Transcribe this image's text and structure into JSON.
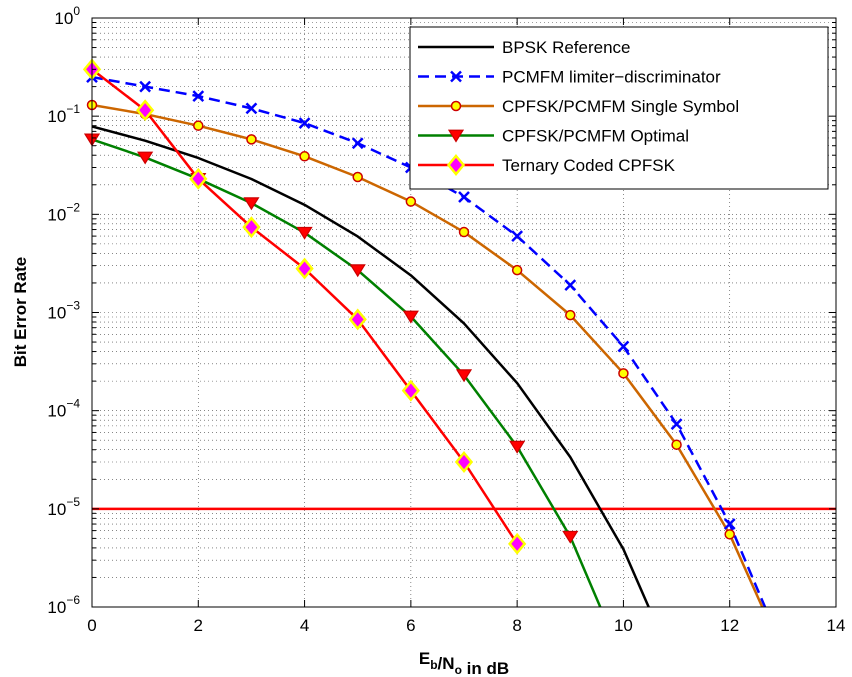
{
  "chart_data": {
    "type": "line",
    "title": "",
    "xlabel": "E_b/N_o in dB",
    "ylabel": "Bit Error Rate",
    "xlim": [
      0,
      14
    ],
    "ylim": [
      1e-06,
      1
    ],
    "yscale": "log",
    "grid": true,
    "legend_position": "top-right",
    "x_ticks": [
      0,
      2,
      4,
      6,
      8,
      10,
      12,
      14
    ],
    "y_tick_exponents": [
      0,
      -1,
      -2,
      -3,
      -4,
      -5,
      -6
    ],
    "threshold_line": {
      "y": 1e-05,
      "color": "#ff0000"
    },
    "series": [
      {
        "name": "BPSK Reference",
        "color": "#000000",
        "line_style": "solid",
        "marker": "none",
        "x": [
          0,
          1,
          2,
          3,
          4,
          5,
          6,
          7,
          8,
          9,
          10,
          10.6
        ],
        "y": [
          0.0786,
          0.0563,
          0.0375,
          0.0229,
          0.0125,
          0.00595,
          0.00239,
          0.000773,
          0.000191,
          3.36e-05,
          3.87e-06,
          7e-07
        ]
      },
      {
        "name": "PCMFM limiter−discriminator",
        "color": "#0000ff",
        "line_style": "dashed",
        "marker": "x",
        "x": [
          0,
          1,
          2,
          3,
          4,
          5,
          6,
          7,
          8,
          9,
          10,
          11,
          12,
          12.7
        ],
        "y": [
          0.25,
          0.2,
          0.16,
          0.12,
          0.085,
          0.053,
          0.03,
          0.015,
          0.006,
          0.0019,
          0.00045,
          7.3e-05,
          7e-06,
          9e-07
        ]
      },
      {
        "name": "CPFSK/PCMFM Single Symbol",
        "color": "#cc6600",
        "line_style": "solid",
        "marker": "circle",
        "marker_fill": "#ffff00",
        "marker_edge": "#cc0000",
        "x": [
          0,
          1,
          2,
          3,
          4,
          5,
          6,
          7,
          8,
          9,
          10,
          11,
          12,
          12.65
        ],
        "y": [
          0.13,
          0.105,
          0.08,
          0.058,
          0.039,
          0.024,
          0.0135,
          0.0066,
          0.0027,
          0.00094,
          0.00024,
          4.5e-05,
          5.5e-06,
          9e-07
        ]
      },
      {
        "name": "CPFSK/PCMFM Optimal",
        "color": "#008000",
        "line_style": "solid",
        "marker": "triangle-down",
        "marker_fill": "#ff0000",
        "marker_edge": "#cc0000",
        "x": [
          0,
          1,
          2,
          3,
          4,
          5,
          6,
          7,
          8,
          9,
          9.6
        ],
        "y": [
          0.058,
          0.038,
          0.023,
          0.013,
          0.0065,
          0.0027,
          0.00091,
          0.00023,
          4.3e-05,
          5.2e-06,
          9e-07
        ]
      },
      {
        "name": "Ternary Coded CPFSK",
        "color": "#ff0000",
        "line_style": "solid",
        "marker": "diamond",
        "marker_fill": "#ff00ff",
        "marker_edge": "#ffff00",
        "x": [
          0,
          1,
          2,
          3,
          4,
          5,
          6,
          7,
          8
        ],
        "y": [
          0.3,
          0.115,
          0.023,
          0.0074,
          0.0028,
          0.00085,
          0.00016,
          3e-05,
          4.4e-06
        ]
      }
    ]
  }
}
